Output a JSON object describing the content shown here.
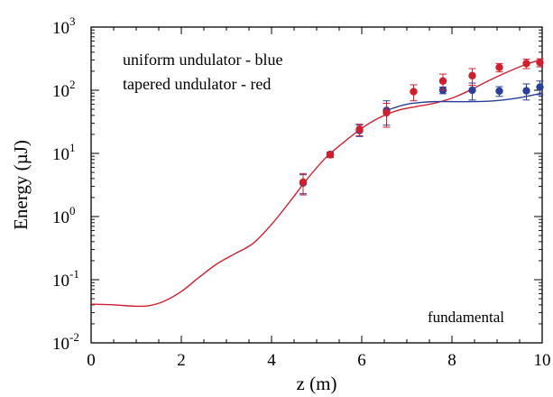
{
  "chart_data": {
    "type": "scatter",
    "title": "",
    "xlabel": "z (m)",
    "ylabel": "Energy (µJ)",
    "xlim": [
      0,
      10
    ],
    "ylim": [
      0.01,
      1000
    ],
    "yscale": "log",
    "grid": false,
    "legend_position": "top-left",
    "annotation": "fundamental",
    "x_ticks": [
      {
        "value": 0,
        "label": "0"
      },
      {
        "value": 2,
        "label": "2"
      },
      {
        "value": 4,
        "label": "4"
      },
      {
        "value": 6,
        "label": "6"
      },
      {
        "value": 8,
        "label": "8"
      },
      {
        "value": 10,
        "label": "10"
      }
    ],
    "y_ticks": [
      {
        "value": 0.01,
        "base": "10",
        "exp": "-2"
      },
      {
        "value": 0.1,
        "base": "10",
        "exp": "-1"
      },
      {
        "value": 1,
        "base": "10",
        "exp": "0"
      },
      {
        "value": 10,
        "base": "10",
        "exp": "1"
      },
      {
        "value": 100,
        "base": "10",
        "exp": "2"
      },
      {
        "value": 1000,
        "base": "10",
        "exp": "3"
      }
    ],
    "series": [
      {
        "name": "uniform undulator - blue",
        "color": "#2b3f9a",
        "points": [
          {
            "x": 4.7,
            "y": 3.4,
            "lo": 2.3,
            "hi": 4.6
          },
          {
            "x": 5.3,
            "y": 9.6,
            "lo": 8.7,
            "hi": 10.5
          },
          {
            "x": 5.95,
            "y": 23,
            "lo": 18.5,
            "hi": 28
          },
          {
            "x": 6.55,
            "y": 48,
            "lo": 28,
            "hi": 68
          },
          {
            "x": 7.8,
            "y": 100,
            "lo": 88,
            "hi": 112
          },
          {
            "x": 8.45,
            "y": 100,
            "lo": 70,
            "hi": 130
          },
          {
            "x": 9.05,
            "y": 97,
            "lo": 80,
            "hi": 114
          },
          {
            "x": 9.65,
            "y": 98,
            "lo": 70,
            "hi": 126
          },
          {
            "x": 9.95,
            "y": 112,
            "lo": 85,
            "hi": 140
          }
        ],
        "curve": [
          [
            6.55,
            48
          ],
          [
            6.8,
            55
          ],
          [
            7.0,
            60
          ],
          [
            7.3,
            64
          ],
          [
            7.6,
            66
          ],
          [
            8.0,
            66
          ],
          [
            8.4,
            66
          ],
          [
            8.8,
            67
          ],
          [
            9.2,
            71
          ],
          [
            9.5,
            76
          ],
          [
            9.8,
            84
          ],
          [
            10.0,
            90
          ]
        ]
      },
      {
        "name": "tapered undulator - red",
        "color": "#d0202e",
        "points": [
          {
            "x": 4.7,
            "y": 3.5,
            "lo": 2.2,
            "hi": 4.8
          },
          {
            "x": 5.3,
            "y": 9.5,
            "lo": 8.6,
            "hi": 10.4
          },
          {
            "x": 5.95,
            "y": 24,
            "lo": 19,
            "hi": 29
          },
          {
            "x": 6.55,
            "y": 44,
            "lo": 26,
            "hi": 62
          },
          {
            "x": 7.15,
            "y": 95,
            "lo": 68,
            "hi": 122
          },
          {
            "x": 7.8,
            "y": 140,
            "lo": 100,
            "hi": 180
          },
          {
            "x": 8.45,
            "y": 170,
            "lo": 120,
            "hi": 220
          },
          {
            "x": 9.05,
            "y": 230,
            "lo": 195,
            "hi": 265
          },
          {
            "x": 9.65,
            "y": 265,
            "lo": 220,
            "hi": 310
          },
          {
            "x": 9.95,
            "y": 275,
            "lo": 235,
            "hi": 315
          }
        ],
        "curve": [
          [
            0.0,
            0.041
          ],
          [
            0.5,
            0.04
          ],
          [
            1.0,
            0.038
          ],
          [
            1.3,
            0.039
          ],
          [
            1.6,
            0.045
          ],
          [
            2.0,
            0.065
          ],
          [
            2.4,
            0.11
          ],
          [
            2.8,
            0.18
          ],
          [
            3.2,
            0.26
          ],
          [
            3.6,
            0.38
          ],
          [
            4.0,
            0.75
          ],
          [
            4.4,
            1.7
          ],
          [
            4.8,
            4.0
          ],
          [
            5.2,
            8.5
          ],
          [
            5.6,
            15
          ],
          [
            6.0,
            25
          ],
          [
            6.4,
            37
          ],
          [
            6.8,
            48
          ],
          [
            7.2,
            55
          ],
          [
            7.6,
            62
          ],
          [
            8.0,
            75
          ],
          [
            8.4,
            100
          ],
          [
            8.8,
            140
          ],
          [
            9.2,
            190
          ],
          [
            9.6,
            250
          ],
          [
            10.0,
            310
          ]
        ]
      }
    ]
  }
}
